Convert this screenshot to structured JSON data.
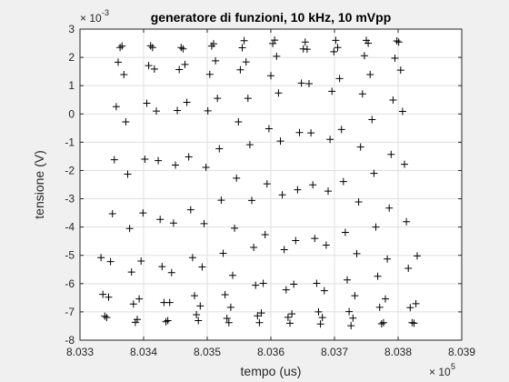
{
  "chart_data": {
    "type": "scatter",
    "title": "generatore di funzioni, 10 kHz, 10 mVpp",
    "xlabel": "tempo (us)",
    "ylabel": "tensione (V)",
    "x_exponent_label": "× 10",
    "x_exponent_power": "5",
    "y_exponent_label": "× 10",
    "y_exponent_power": "-3",
    "xlim": [
      8.033,
      8.039
    ],
    "ylim": [
      -8,
      3
    ],
    "x_scale_factor": 100000,
    "y_scale_factor": 0.001,
    "xticks": [
      8.033,
      8.034,
      8.035,
      8.036,
      8.037,
      8.038,
      8.039
    ],
    "xtick_labels": [
      "8.033",
      "8.034",
      "8.035",
      "8.036",
      "8.037",
      "8.038",
      "8.039"
    ],
    "yticks": [
      3,
      2,
      1,
      0,
      -1,
      -2,
      -3,
      -4,
      -5,
      -6,
      -7,
      -8
    ],
    "ytick_labels": [
      "3",
      "2",
      "1",
      "0",
      "-1",
      "-2",
      "-3",
      "-4",
      "-5",
      "-6",
      "-7",
      "-8"
    ],
    "grid": true,
    "marker": "+",
    "color": "#000000",
    "series": [
      {
        "name": "",
        "x": [
          8.03333,
          8.03336,
          8.03339,
          8.03342,
          8.03345,
          8.03348,
          8.03351,
          8.03354,
          8.03357,
          8.0336,
          8.03363,
          8.03366,
          8.03369,
          8.03372,
          8.03375,
          8.03378,
          8.03381,
          8.03384,
          8.03387,
          8.0339,
          8.03393,
          8.03396,
          8.03399,
          8.03402,
          8.03405,
          8.03408,
          8.03411,
          8.03414,
          8.03417,
          8.0342,
          8.03423,
          8.03426,
          8.03429,
          8.03432,
          8.03435,
          8.03438,
          8.03441,
          8.03444,
          8.03447,
          8.0345,
          8.03453,
          8.03456,
          8.03459,
          8.03462,
          8.03465,
          8.03468,
          8.03471,
          8.03474,
          8.03477,
          8.0348,
          8.03483,
          8.03486,
          8.03489,
          8.03492,
          8.03495,
          8.03498,
          8.03501,
          8.03504,
          8.03507,
          8.0351,
          8.03513,
          8.03516,
          8.03519,
          8.03522,
          8.03525,
          8.03528,
          8.03531,
          8.03534,
          8.03537,
          8.0354,
          8.03543,
          8.03546,
          8.03549,
          8.03552,
          8.03555,
          8.03558,
          8.03561,
          8.03564,
          8.03567,
          8.0357,
          8.03573,
          8.03576,
          8.03579,
          8.03582,
          8.03585,
          8.03588,
          8.03591,
          8.03594,
          8.03597,
          8.036,
          8.03603,
          8.03606,
          8.03609,
          8.03612,
          8.03615,
          8.03618,
          8.03621,
          8.03624,
          8.03627,
          8.0363,
          8.03633,
          8.03636,
          8.03639,
          8.03642,
          8.03645,
          8.03648,
          8.03651,
          8.03654,
          8.03657,
          8.0366,
          8.03663,
          8.03666,
          8.03669,
          8.03672,
          8.03675,
          8.03678,
          8.03681,
          8.03684,
          8.03687,
          8.0369,
          8.03693,
          8.03696,
          8.03699,
          8.03702,
          8.03705,
          8.03708,
          8.03711,
          8.03714,
          8.03717,
          8.0372,
          8.03723,
          8.03726,
          8.03729,
          8.03732,
          8.03735,
          8.03738,
          8.03741,
          8.03744,
          8.03747,
          8.0375,
          8.03753,
          8.03756,
          8.03759,
          8.03762,
          8.03765,
          8.03768,
          8.03771,
          8.03774,
          8.03777,
          8.0378,
          8.03783,
          8.03786,
          8.03789,
          8.03792,
          8.03795,
          8.03798,
          8.03801,
          8.03804,
          8.03807,
          8.0381,
          8.03813,
          8.03816,
          8.03819,
          8.03822,
          8.03825,
          8.03828,
          8.0383
        ],
        "y": [
          -5.08,
          -6.38,
          -7.15,
          -7.2,
          -6.48,
          -5.22,
          -3.53,
          -1.62,
          0.26,
          1.83,
          2.35,
          2.4,
          1.39,
          -0.28,
          -2.13,
          -4.05,
          -5.59,
          -6.72,
          -7.37,
          -7.27,
          -6.54,
          -5.2,
          -3.5,
          -1.6,
          0.38,
          1.71,
          2.41,
          2.35,
          1.59,
          0.1,
          -1.65,
          -3.73,
          -5.4,
          -6.67,
          -7.35,
          -7.31,
          -6.67,
          -5.61,
          -3.86,
          -1.81,
          0.12,
          1.57,
          2.35,
          2.3,
          1.75,
          0.41,
          -1.52,
          -3.39,
          -5.08,
          -6.43,
          -7.1,
          -7.31,
          -6.79,
          -5.41,
          -3.88,
          -1.89,
          0.11,
          1.4,
          2.4,
          2.48,
          1.88,
          0.55,
          -1.23,
          -3.05,
          -4.93,
          -6.39,
          -7.23,
          -7.38,
          -6.84,
          -5.71,
          -4.04,
          -2.27,
          -0.28,
          1.56,
          2.34,
          2.59,
          1.84,
          0.55,
          -1.09,
          -3.06,
          -4.72,
          -6.06,
          -7.14,
          -7.38,
          -7.04,
          -5.99,
          -4.27,
          -2.47,
          -0.52,
          1.35,
          2.49,
          2.61,
          2.04,
          0.74,
          -0.96,
          -2.86,
          -4.8,
          -6.22,
          -7.19,
          -7.4,
          -7.07,
          -6.02,
          -4.48,
          -2.68,
          -0.66,
          1.09,
          2.3,
          2.54,
          2.29,
          1.07,
          -0.67,
          -2.51,
          -4.4,
          -5.99,
          -7.0,
          -7.43,
          -7.2,
          -6.25,
          -4.64,
          -2.73,
          -0.9,
          0.8,
          2.2,
          2.6,
          2.35,
          1.25,
          -0.55,
          -2.39,
          -4.19,
          -5.87,
          -6.99,
          -7.49,
          -7.22,
          -6.43,
          -4.94,
          -3.11,
          -1.17,
          0.71,
          2.06,
          2.6,
          2.5,
          1.39,
          -0.2,
          -2.1,
          -4.0,
          -5.74,
          -6.84,
          -7.42,
          -7.38,
          -6.54,
          -5.13,
          -3.33,
          -1.43,
          0.49,
          1.97,
          2.58,
          2.54,
          1.55,
          0.09,
          -1.78,
          -3.81,
          -5.46,
          -6.85,
          -7.38,
          -7.4,
          -6.71,
          -5.02
        ]
      }
    ]
  }
}
